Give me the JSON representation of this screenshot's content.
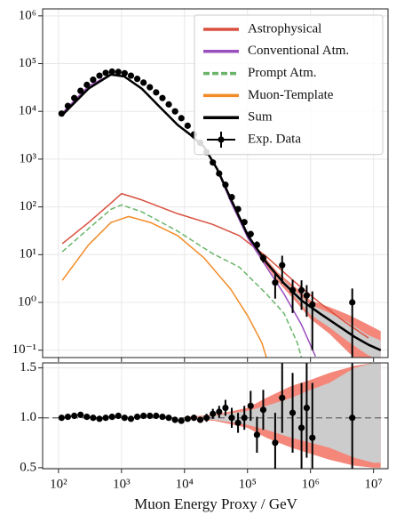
{
  "chart_data": [
    {
      "type": "line",
      "xscale": "log",
      "yscale": "log",
      "grid": true,
      "legend": "upper right",
      "xlim": [
        56,
        17000000
      ],
      "ylim": [
        0.07,
        1400000
      ],
      "xticks": [
        100,
        1000,
        10000,
        100000,
        1000000,
        10000000
      ],
      "yticks": [
        {
          "value": 0.1,
          "label": "10⁻¹"
        },
        {
          "value": 1,
          "label": "10⁰"
        },
        {
          "value": 10,
          "label": "10¹"
        },
        {
          "value": 100,
          "label": "10²"
        },
        {
          "value": 1000,
          "label": "10³"
        },
        {
          "value": 10000,
          "label": "10⁴"
        },
        {
          "value": 100000,
          "label": "10⁵"
        },
        {
          "value": 1000000,
          "label": "10⁶"
        }
      ],
      "bands": [
        {
          "color": "#f4877a",
          "x": [
            140000,
            300000,
            600000,
            1000000,
            2000000,
            4000000,
            8000000,
            13000000
          ],
          "lower": [
            11,
            2.8,
            1.0,
            0.45,
            0.22,
            0.09,
            0.04,
            0.02
          ],
          "upper": [
            14,
            4.3,
            2.0,
            1.1,
            0.8,
            0.55,
            0.35,
            0.25
          ]
        },
        {
          "color": "#cccccc",
          "x": [
            140000,
            300000,
            600000,
            1000000,
            2000000,
            4000000,
            8000000,
            13000000
          ],
          "lower": [
            12,
            3.2,
            1.2,
            0.55,
            0.3,
            0.15,
            0.08,
            0.06
          ],
          "upper": [
            13.2,
            3.8,
            1.65,
            0.9,
            0.6,
            0.38,
            0.21,
            0.16
          ]
        }
      ],
      "series": [
        {
          "name": "Astrophysical",
          "color": "#d9503e",
          "x": [
            115,
            300,
            680,
            1000,
            2100,
            7800,
            28000,
            74000,
            200000,
            525000,
            1400000,
            3600000,
            8300000
          ],
          "values": [
            17,
            47,
            120,
            190,
            140,
            72,
            43,
            25,
            9.1,
            2.9,
            0.98,
            0.38,
            0.18
          ]
        },
        {
          "name": "Conventional Atm.",
          "color": "#9a4fbf",
          "x": [
            112,
            300,
            680,
            1100,
            2100,
            4000,
            7800,
            12600,
            20500,
            33000,
            54000,
            102000,
            200000,
            380000,
            720000,
            1200000
          ],
          "values": [
            8900,
            34000,
            59000,
            54000,
            29000,
            12500,
            5200,
            3100,
            1800,
            600,
            130,
            22,
            5.5,
            1.5,
            0.34,
            0.074
          ]
        },
        {
          "name": "Prompt Atm.",
          "color": "#6ab56a",
          "style": "dashed",
          "x": [
            115,
            300,
            680,
            1000,
            2100,
            7800,
            28000,
            74000,
            200000,
            380000,
            620000,
            720000
          ],
          "values": [
            11.5,
            35,
            89,
            110,
            79,
            31,
            10.5,
            5.5,
            1.5,
            0.59,
            0.14,
            0.069
          ]
        },
        {
          "name": "Muon-Template",
          "color": "#f28c28",
          "x": [
            115,
            300,
            680,
            1300,
            2900,
            7800,
            20500,
            54000,
            102000,
            170000,
            200000
          ],
          "values": [
            2.9,
            16,
            47,
            63,
            47,
            25,
            8.5,
            1.9,
            0.51,
            0.14,
            0.069
          ]
        },
        {
          "name": "Sum",
          "color": "#000000",
          "width": 2.5,
          "x": [
            112,
            300,
            680,
            1100,
            2100,
            4000,
            7800,
            12600,
            20500,
            33000,
            54000,
            102000,
            200000,
            380000,
            720000,
            1400000,
            2600000,
            5000000,
            8300000,
            13000000
          ],
          "values": [
            8100,
            30000,
            59000,
            54000,
            30000,
            12600,
            5200,
            3200,
            1800,
            620,
            150,
            25,
            6.8,
            2.5,
            1.1,
            0.59,
            0.34,
            0.19,
            0.13,
            0.1
          ]
        },
        {
          "name": "Exp. Data",
          "kind": "errorbar",
          "color": "#000000",
          "x": [
            112,
            141,
            178,
            224,
            282,
            355,
            447,
            562,
            708,
            891,
            1122,
            1413,
            1778,
            2239,
            2818,
            3548,
            4467,
            5623,
            7079,
            8913,
            11220,
            14130,
            17780,
            22390,
            28180,
            35480,
            44670,
            56230,
            70790,
            89130,
            112200,
            141300,
            177800,
            275000,
            355000,
            520000,
            720000,
            870000,
            1070000,
            4600000
          ],
          "values": [
            9000,
            13000,
            19000,
            27000,
            36000,
            46000,
            56000,
            64000,
            68000,
            67000,
            63000,
            56000,
            48000,
            40000,
            32000,
            25000,
            19000,
            14000,
            10000,
            7200,
            5000,
            3300,
            2200,
            1400,
            850,
            500,
            290,
            160,
            90,
            48,
            27,
            16,
            8.5,
            2.6,
            6,
            1.8,
            1.8,
            1.4,
            0.9,
            1.0
          ],
          "errors": [
            90,
            130,
            190,
            270,
            360,
            460,
            560,
            640,
            680,
            670,
            630,
            560,
            480,
            400,
            320,
            250,
            190,
            140,
            100,
            72,
            50,
            66,
            66,
            56,
            43,
            30,
            23,
            16,
            9,
            6,
            4,
            3,
            1.7,
            1.4,
            3.5,
            1.2,
            1.1,
            0.9,
            0.8,
            0.95
          ]
        }
      ]
    },
    {
      "type": "ratio",
      "xscale": "log",
      "grid": true,
      "xlabel": "Muon Energy Proxy / GeV",
      "xlim": [
        56,
        17000000
      ],
      "ylim": [
        0.49,
        1.55
      ],
      "reference": 1,
      "xticks": [
        {
          "value": 100,
          "label": "10²"
        },
        {
          "value": 1000,
          "label": "10³"
        },
        {
          "value": 10000,
          "label": "10⁴"
        },
        {
          "value": 100000,
          "label": "10⁵"
        },
        {
          "value": 1000000,
          "label": "10⁶"
        },
        {
          "value": 10000000,
          "label": "10⁷"
        }
      ],
      "yticks": [
        0.5,
        {
          "value": 1,
          "label": "1.0"
        },
        1.5
      ],
      "bands": [
        {
          "color": "#f4877a",
          "x": [
            10000,
            30000,
            100000,
            200000,
            500000,
            1000000,
            2000000,
            5000000,
            10000000,
            13000000
          ],
          "lower": [
            0.99,
            0.97,
            0.9,
            0.8,
            0.7,
            0.64,
            0.58,
            0.52,
            0.5,
            0.5
          ],
          "upper": [
            1.01,
            1.03,
            1.1,
            1.2,
            1.32,
            1.38,
            1.45,
            1.52,
            1.55,
            1.55
          ]
        },
        {
          "color": "#cccccc",
          "x": [
            10000,
            30000,
            100000,
            200000,
            500000,
            1000000,
            2000000,
            5000000,
            10000000,
            13000000
          ],
          "lower": [
            1.0,
            0.98,
            0.93,
            0.88,
            0.8,
            0.75,
            0.7,
            0.6,
            0.55,
            0.55
          ],
          "upper": [
            1.0,
            1.02,
            1.07,
            1.12,
            1.2,
            1.28,
            1.35,
            1.5,
            1.55,
            1.55
          ]
        }
      ],
      "series": [
        {
          "kind": "errorbar",
          "color": "#000000",
          "x": [
            112,
            141,
            178,
            224,
            282,
            355,
            447,
            562,
            708,
            891,
            1122,
            1413,
            1778,
            2239,
            2818,
            3548,
            4467,
            5623,
            7079,
            8913,
            11220,
            14130,
            17780,
            22390,
            28180,
            35480,
            44670,
            56230,
            70790,
            89130,
            112200,
            141300,
            177800,
            275000,
            355000,
            520000,
            720000,
            870000,
            1070000,
            4600000
          ],
          "values": [
            1.0,
            1.01,
            1.02,
            1.03,
            1.01,
            1.0,
            0.99,
            1.0,
            1.01,
            1.02,
            1.0,
            0.99,
            1.01,
            1.02,
            1.02,
            1.02,
            1.01,
            1.0,
            0.98,
            0.97,
            0.99,
            1.0,
            0.98,
            1.0,
            1.04,
            1.06,
            1.1,
            1.0,
            0.95,
            1.0,
            1.12,
            0.83,
            1.08,
            0.75,
            1.2,
            1.05,
            0.9,
            1.1,
            0.8,
            1.0
          ],
          "errors": [
            0.01,
            0.01,
            0.01,
            0.01,
            0.01,
            0.01,
            0.01,
            0.01,
            0.01,
            0.01,
            0.01,
            0.01,
            0.01,
            0.01,
            0.01,
            0.01,
            0.01,
            0.01,
            0.01,
            0.01,
            0.01,
            0.02,
            0.03,
            0.04,
            0.05,
            0.06,
            0.08,
            0.1,
            0.1,
            0.12,
            0.15,
            0.18,
            0.2,
            0.3,
            0.35,
            0.4,
            0.45,
            0.5,
            0.55,
            0.6
          ]
        }
      ]
    }
  ]
}
